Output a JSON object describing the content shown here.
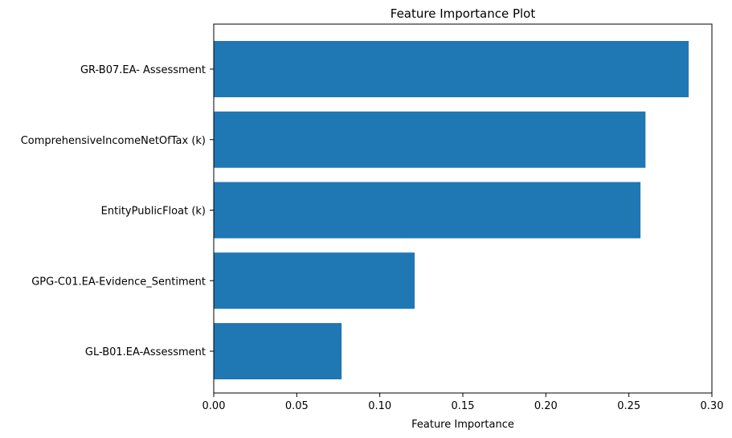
{
  "chart_data": {
    "type": "bar",
    "orientation": "horizontal",
    "title": "Feature Importance Plot",
    "xlabel": "Feature Importance",
    "ylabel": "",
    "categories": [
      "GR-B07.EA- Assessment",
      "ComprehensiveIncomeNetOfTax (k)",
      "EntityPublicFloat (k)",
      "GPG-C01.EA-Evidence_Sentiment",
      "GL-B01.EA-Assessment"
    ],
    "values": [
      0.286,
      0.26,
      0.257,
      0.121,
      0.077
    ],
    "xlim": [
      0.0,
      0.3
    ],
    "xticks": [
      "0.00",
      "0.05",
      "0.10",
      "0.15",
      "0.20",
      "0.25",
      "0.30"
    ],
    "grid": false,
    "legend": "none",
    "bar_color": "#1f77b4"
  }
}
